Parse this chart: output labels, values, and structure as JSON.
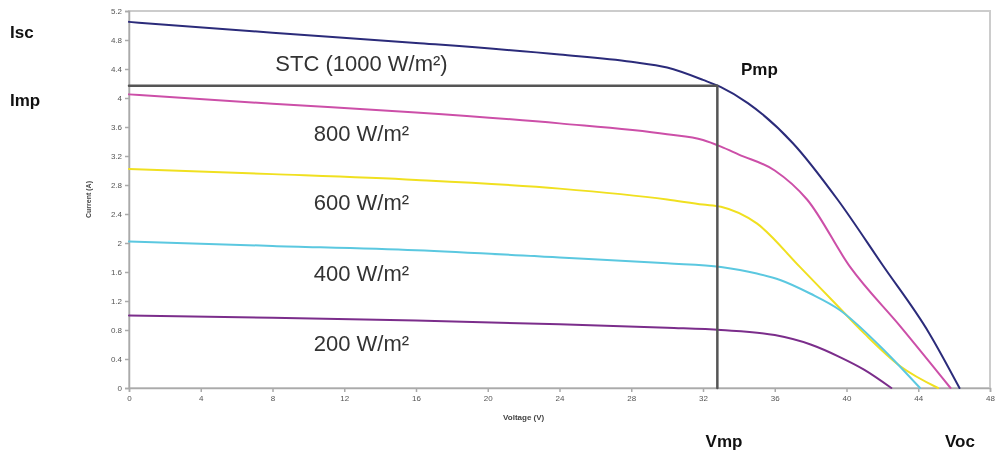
{
  "chart_data": {
    "type": "line",
    "xlabel": "Voltage (V)",
    "ylabel": "Current (A)",
    "xlim": [
      0,
      48
    ],
    "xticks": [
      0,
      4,
      8,
      12,
      16,
      20,
      24,
      28,
      32,
      36,
      40,
      44,
      48
    ],
    "ylim": [
      0,
      5.2
    ],
    "yticks": [
      0,
      0.4,
      0.8,
      1.2,
      1.6,
      2,
      2.4,
      2.8,
      3.2,
      3.6,
      4,
      4.4,
      4.8,
      5.2
    ],
    "grid": false,
    "marker": "none",
    "line_style": "solid",
    "series": [
      {
        "name": "STC (1000 W/m²)",
        "color": "#2b2b7a",
        "x": [
          0,
          8,
          16,
          24,
          28,
          30,
          32,
          33,
          34.5,
          37,
          39.5,
          42,
          44.6,
          46.3
        ],
        "values": [
          5.05,
          4.9,
          4.76,
          4.6,
          4.5,
          4.42,
          4.25,
          4.15,
          3.93,
          3.38,
          2.6,
          1.7,
          0.76,
          0
        ]
      },
      {
        "name": "800 W/m²",
        "color": "#cc4fa8",
        "x": [
          0,
          8,
          16,
          24,
          30,
          32,
          33,
          34,
          36,
          37.8,
          40.2,
          43,
          45.8
        ],
        "values": [
          4.05,
          3.92,
          3.8,
          3.65,
          3.5,
          3.42,
          3.33,
          3.22,
          3.0,
          2.6,
          1.67,
          0.85,
          0
        ]
      },
      {
        "name": "600 W/m²",
        "color": "#f0e020",
        "x": [
          0,
          8,
          16,
          24,
          30,
          32,
          33,
          35,
          37.4,
          39.2,
          41,
          43,
          45.1
        ],
        "values": [
          3.02,
          2.95,
          2.87,
          2.75,
          2.6,
          2.53,
          2.5,
          2.27,
          1.67,
          1.21,
          0.75,
          0.3,
          0
        ]
      },
      {
        "name": "400 W/m²",
        "color": "#5bc8e0",
        "x": [
          0,
          8,
          16,
          24,
          30,
          33,
          35,
          36.3,
          38,
          39.6,
          41.9,
          44.1
        ],
        "values": [
          2.02,
          1.96,
          1.9,
          1.8,
          1.72,
          1.67,
          1.58,
          1.49,
          1.3,
          1.08,
          0.57,
          0
        ]
      },
      {
        "name": "200 W/m²",
        "color": "#7b2d8b",
        "x": [
          0,
          8,
          16,
          24,
          30,
          33,
          36,
          38,
          39.6,
          41,
          42.5
        ],
        "values": [
          1.0,
          0.97,
          0.93,
          0.88,
          0.83,
          0.8,
          0.73,
          0.6,
          0.43,
          0.25,
          0
        ]
      },
      {
        "color": "#555555",
        "x": [
          0,
          32.8,
          32.8
        ],
        "values": [
          4.17,
          4.17,
          0
        ]
      }
    ],
    "annotations": [
      "Isc",
      "Imp",
      "Pmp",
      "Vmp",
      "Voc"
    ]
  }
}
